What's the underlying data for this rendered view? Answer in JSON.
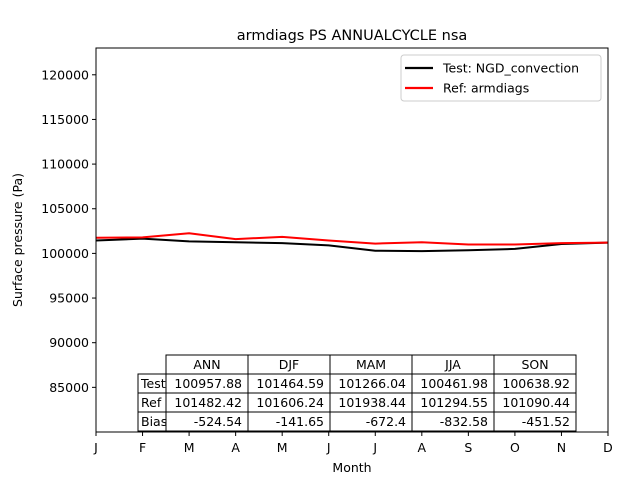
{
  "chart_data": {
    "type": "line",
    "title": "armdiags PS ANNUALCYCLE nsa",
    "xlabel": "Month",
    "ylabel": "Surface pressure (Pa)",
    "categories": [
      "J",
      "F",
      "M",
      "A",
      "M",
      "J",
      "J",
      "A",
      "S",
      "O",
      "N",
      "D"
    ],
    "ylim": [
      80000,
      123000
    ],
    "yticks": [
      85000,
      90000,
      95000,
      100000,
      105000,
      110000,
      115000,
      120000
    ],
    "grid": false,
    "legend_position": "top-right",
    "series": [
      {
        "name": "Test: NGD_convection",
        "color": "#000000",
        "values": [
          101450,
          101650,
          101350,
          101250,
          101150,
          100900,
          100300,
          100250,
          100350,
          100500,
          101050,
          101200
        ]
      },
      {
        "name": "Ref: armdiags",
        "color": "#ff0000",
        "values": [
          101750,
          101800,
          102250,
          101600,
          101850,
          101450,
          101100,
          101250,
          101000,
          101000,
          101150,
          101200
        ]
      }
    ],
    "table": {
      "columns": [
        "ANN",
        "DJF",
        "MAM",
        "JJA",
        "SON"
      ],
      "rows": [
        {
          "label": "Test",
          "values": [
            "100957.88",
            "101464.59",
            "101266.04",
            "100461.98",
            "100638.92"
          ]
        },
        {
          "label": "Ref",
          "values": [
            "101482.42",
            "101606.24",
            "101938.44",
            "101294.55",
            "101090.44"
          ]
        },
        {
          "label": "Bias",
          "values": [
            "-524.54",
            "-141.65",
            "-672.4",
            "-832.58",
            "-451.52"
          ]
        }
      ]
    }
  }
}
